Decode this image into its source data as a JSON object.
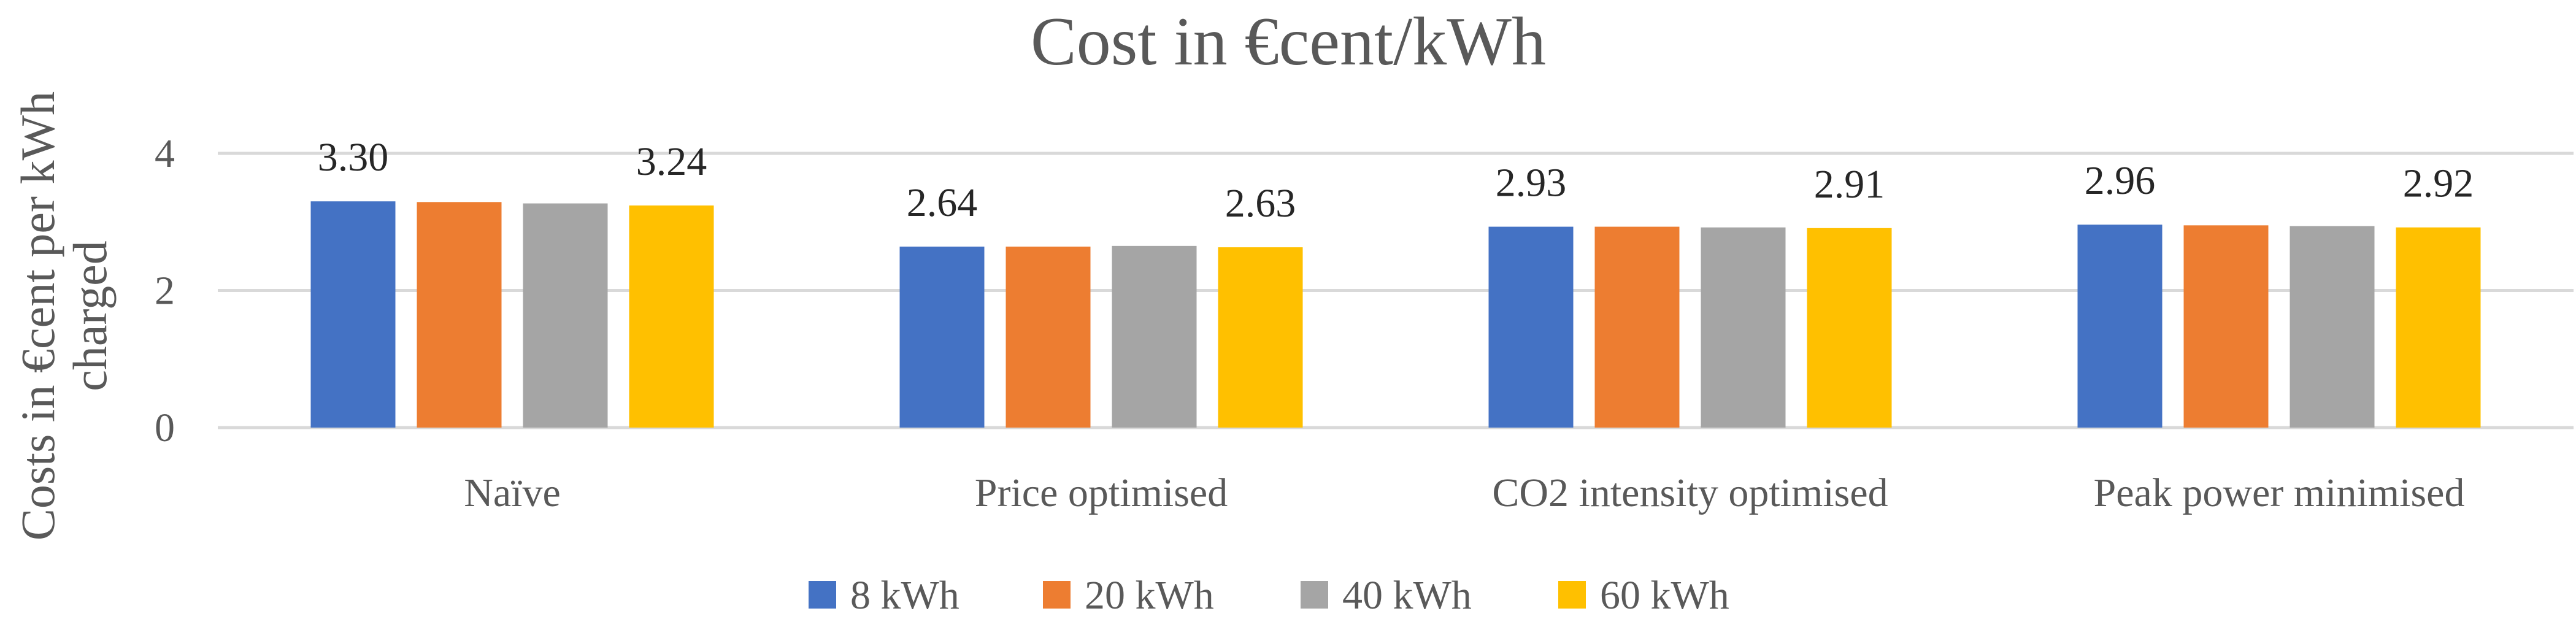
{
  "chart_data": {
    "type": "bar",
    "title": "Cost in €cent/kWh",
    "xlabel": "",
    "ylabel": "Costs in €cent per kWh charged",
    "ylabel_lines": [
      "Costs in €cent per kWh",
      "charged"
    ],
    "ylim": [
      0,
      4
    ],
    "yticks": [
      0,
      2,
      4
    ],
    "grid": true,
    "legend_position": "bottom",
    "categories": [
      "Naïve",
      "Price optimised",
      "CO2 intensity optimised",
      "Peak power minimised"
    ],
    "series": [
      {
        "name": "8  kWh",
        "color": "#4472C4",
        "values": [
          3.3,
          2.64,
          2.93,
          2.96
        ]
      },
      {
        "name": "20  kWh",
        "color": "#ED7D31",
        "values": [
          3.29,
          2.64,
          2.93,
          2.95
        ]
      },
      {
        "name": "40  kWh",
        "color": "#A5A5A5",
        "values": [
          3.27,
          2.65,
          2.92,
          2.94
        ]
      },
      {
        "name": "60  kWh",
        "color": "#FFC000",
        "values": [
          3.24,
          2.63,
          2.91,
          2.92
        ]
      }
    ],
    "data_labels": [
      {
        "category": 0,
        "series": 0,
        "text": "3.30"
      },
      {
        "category": 0,
        "series": 3,
        "text": "3.24"
      },
      {
        "category": 1,
        "series": 0,
        "text": "2.64"
      },
      {
        "category": 1,
        "series": 3,
        "text": "2.63"
      },
      {
        "category": 2,
        "series": 0,
        "text": "2.93"
      },
      {
        "category": 2,
        "series": 3,
        "text": "2.91"
      },
      {
        "category": 3,
        "series": 0,
        "text": "2.96"
      },
      {
        "category": 3,
        "series": 3,
        "text": "2.92"
      }
    ],
    "colors": {
      "gridline": "#D9D9D9",
      "axis": "#D9D9D9",
      "text": "#595959"
    }
  }
}
